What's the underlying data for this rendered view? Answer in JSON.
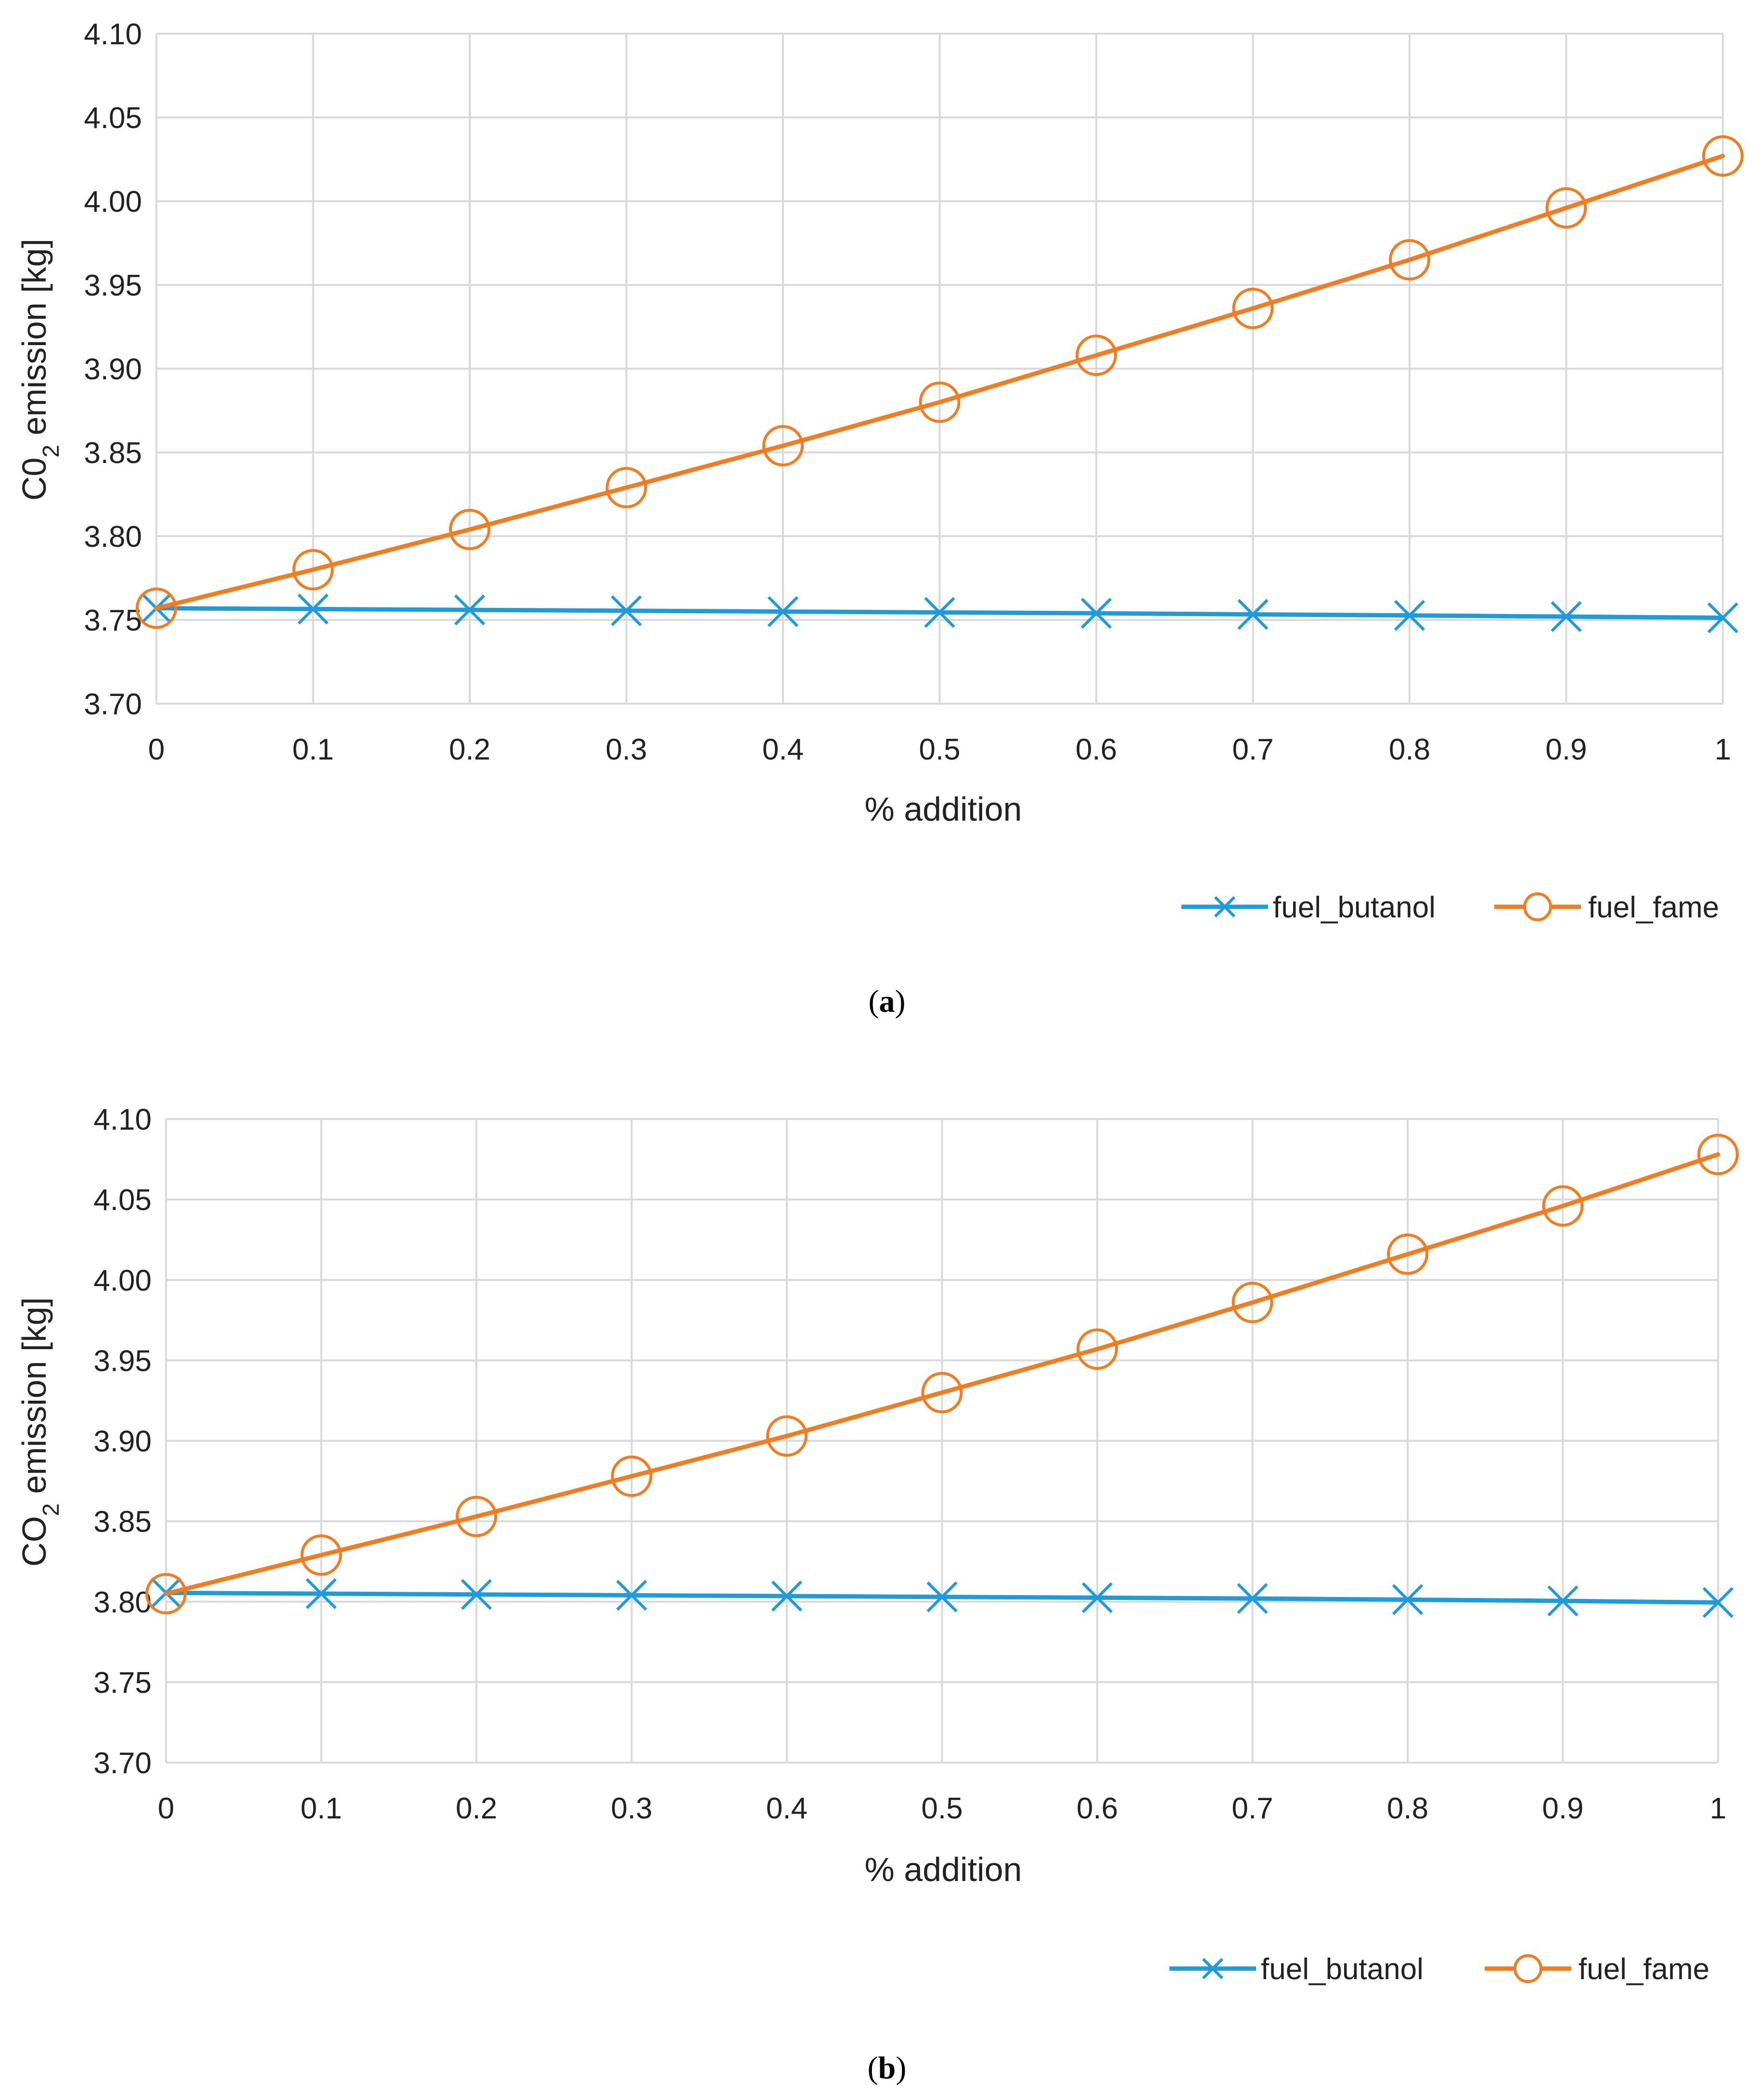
{
  "chart_data": [
    {
      "type": "line",
      "panel_label": "a",
      "xlabel": "% addition",
      "ylabel": "C0",
      "ylabel_subscript": "2",
      "ylabel_rest": " emission [kg]",
      "x": [
        0,
        0.1,
        0.2,
        0.3,
        0.4,
        0.5,
        0.6,
        0.7,
        0.8,
        0.9,
        1
      ],
      "x_tick_labels": [
        "0",
        "0.1",
        "0.2",
        "0.3",
        "0.4",
        "0.5",
        "0.6",
        "0.7",
        "0.8",
        "0.9",
        "1"
      ],
      "ylim": [
        3.7,
        4.1
      ],
      "y_ticks": [
        3.7,
        3.75,
        3.8,
        3.85,
        3.9,
        3.95,
        4.0,
        4.05,
        4.1
      ],
      "y_tick_labels": [
        "3.70",
        "3.75",
        "3.80",
        "3.85",
        "3.90",
        "3.95",
        "4.00",
        "4.05",
        "4.10"
      ],
      "grid": true,
      "legend_position": "bottom-right",
      "series": [
        {
          "name": "fuel_butanol",
          "marker": "x",
          "color": "#1F9BDA",
          "values": [
            3.757,
            3.7565,
            3.756,
            3.7555,
            3.755,
            3.7545,
            3.754,
            3.7533,
            3.7527,
            3.752,
            3.7513
          ]
        },
        {
          "name": "fuel_fame",
          "marker": "circle",
          "color": "#F37B20",
          "values": [
            3.757,
            3.78,
            3.804,
            3.829,
            3.854,
            3.88,
            3.908,
            3.936,
            3.965,
            3.996,
            4.027
          ]
        }
      ]
    },
    {
      "type": "line",
      "panel_label": "b",
      "xlabel": "% addition",
      "ylabel": "CO",
      "ylabel_subscript": "2",
      "ylabel_rest": " emission [kg]",
      "x": [
        0,
        0.1,
        0.2,
        0.3,
        0.4,
        0.5,
        0.6,
        0.7,
        0.8,
        0.9,
        1
      ],
      "x_tick_labels": [
        "0",
        "0.1",
        "0.2",
        "0.3",
        "0.4",
        "0.5",
        "0.6",
        "0.7",
        "0.8",
        "0.9",
        "1"
      ],
      "ylim": [
        3.7,
        4.1
      ],
      "y_ticks": [
        3.7,
        3.75,
        3.8,
        3.85,
        3.9,
        3.95,
        4.0,
        4.05,
        4.1
      ],
      "y_tick_labels": [
        "3.70",
        "3.75",
        "3.80",
        "3.85",
        "3.90",
        "3.95",
        "4.00",
        "4.05",
        "4.10"
      ],
      "grid": true,
      "legend_position": "bottom-right",
      "series": [
        {
          "name": "fuel_butanol",
          "marker": "x",
          "color": "#1F9BDA",
          "values": [
            3.8055,
            3.805,
            3.8045,
            3.804,
            3.8035,
            3.803,
            3.8025,
            3.802,
            3.8013,
            3.8005,
            3.7995
          ]
        },
        {
          "name": "fuel_fame",
          "marker": "circle",
          "color": "#F37B20",
          "values": [
            3.805,
            3.829,
            3.853,
            3.878,
            3.903,
            3.93,
            3.957,
            3.986,
            4.016,
            4.046,
            4.078
          ]
        }
      ]
    }
  ]
}
